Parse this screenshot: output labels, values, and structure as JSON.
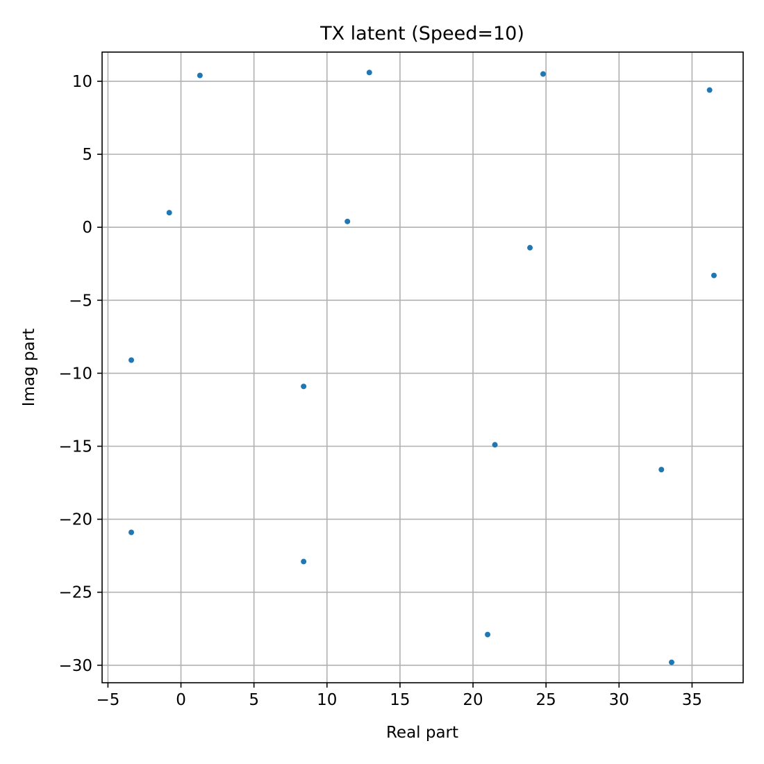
{
  "chart_data": {
    "type": "scatter",
    "title": "TX latent (Speed=10)",
    "xlabel": "Real part",
    "ylabel": "Imag part",
    "xlim": [
      -5.4,
      38.5
    ],
    "ylim": [
      -31.2,
      12.0
    ],
    "xticks": [
      -5,
      0,
      5,
      10,
      15,
      20,
      25,
      30,
      35
    ],
    "yticks": [
      10,
      5,
      0,
      -5,
      -10,
      -15,
      -20,
      -25,
      -30
    ],
    "grid": true,
    "color": "#1f77b4",
    "points": [
      {
        "x": 1.3,
        "y": 10.4
      },
      {
        "x": 12.9,
        "y": 10.6
      },
      {
        "x": 24.8,
        "y": 10.5
      },
      {
        "x": 36.2,
        "y": 9.4
      },
      {
        "x": -0.8,
        "y": 1.0
      },
      {
        "x": 11.4,
        "y": 0.4
      },
      {
        "x": 23.9,
        "y": -1.4
      },
      {
        "x": 36.5,
        "y": -3.3
      },
      {
        "x": -3.4,
        "y": -9.1
      },
      {
        "x": 8.4,
        "y": -10.9
      },
      {
        "x": 21.5,
        "y": -14.9
      },
      {
        "x": 32.9,
        "y": -16.6
      },
      {
        "x": -3.4,
        "y": -20.9
      },
      {
        "x": 8.4,
        "y": -22.9
      },
      {
        "x": 21.0,
        "y": -27.9
      },
      {
        "x": 33.6,
        "y": -29.8
      }
    ]
  }
}
